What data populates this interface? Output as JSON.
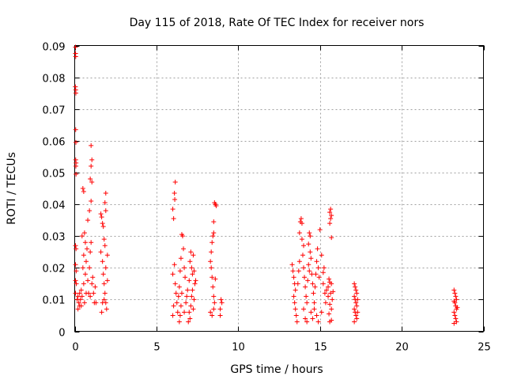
{
  "chart_data": {
    "type": "scatter",
    "title": "Day 115 of 2018, Rate Of TEC Index for receiver nors",
    "xlabel": "GPS time / hours",
    "ylabel": "ROTI / TECUs",
    "xlim": [
      0,
      25
    ],
    "ylim": [
      0,
      0.09
    ],
    "x_ticks": [
      {
        "value": 0,
        "label": "0"
      },
      {
        "value": 5,
        "label": "5"
      },
      {
        "value": 10,
        "label": "10"
      },
      {
        "value": 15,
        "label": "15"
      },
      {
        "value": 20,
        "label": "20"
      },
      {
        "value": 25,
        "label": "25"
      }
    ],
    "y_ticks": [
      {
        "value": 0,
        "label": "0"
      },
      {
        "value": 0.01,
        "label": "0.01"
      },
      {
        "value": 0.02,
        "label": "0.02"
      },
      {
        "value": 0.03,
        "label": "0.03"
      },
      {
        "value": 0.04,
        "label": "0.04"
      },
      {
        "value": 0.05,
        "label": "0.05"
      },
      {
        "value": 0.06,
        "label": "0.06"
      },
      {
        "value": 0.07,
        "label": "0.07"
      },
      {
        "value": 0.08,
        "label": "0.08"
      },
      {
        "value": 0.09,
        "label": "0.09"
      }
    ],
    "grid": true,
    "marker": "plus",
    "color": "#ff0000",
    "series": [
      {
        "name": "ROTI",
        "points": [
          [
            0.05,
            0.0895
          ],
          [
            0.05,
            0.0875
          ],
          [
            0.06,
            0.0865
          ],
          [
            0.04,
            0.077
          ],
          [
            0.06,
            0.076
          ],
          [
            0.07,
            0.075
          ],
          [
            0.06,
            0.0635
          ],
          [
            0.07,
            0.0595
          ],
          [
            0.06,
            0.054
          ],
          [
            0.08,
            0.053
          ],
          [
            0.07,
            0.052
          ],
          [
            0.08,
            0.0495
          ],
          [
            0.05,
            0.027
          ],
          [
            0.08,
            0.026
          ],
          [
            0.05,
            0.021
          ],
          [
            0.09,
            0.019
          ],
          [
            0.05,
            0.016
          ],
          [
            0.1,
            0.015
          ],
          [
            0.05,
            0.012
          ],
          [
            0.15,
            0.01
          ],
          [
            0.2,
            0.011
          ],
          [
            0.25,
            0.009
          ],
          [
            0.3,
            0.012
          ],
          [
            0.2,
            0.007
          ],
          [
            0.3,
            0.008
          ],
          [
            0.35,
            0.01
          ],
          [
            0.4,
            0.013
          ],
          [
            0.45,
            0.011
          ],
          [
            0.4,
            0.008
          ],
          [
            0.5,
            0.02
          ],
          [
            0.55,
            0.024
          ],
          [
            0.45,
            0.03
          ],
          [
            0.6,
            0.031
          ],
          [
            0.65,
            0.028
          ],
          [
            0.55,
            0.015
          ],
          [
            0.65,
            0.018
          ],
          [
            0.7,
            0.022
          ],
          [
            0.75,
            0.026
          ],
          [
            0.6,
            0.009
          ],
          [
            0.7,
            0.012
          ],
          [
            0.8,
            0.016
          ],
          [
            0.9,
            0.02
          ],
          [
            0.95,
            0.025
          ],
          [
            1.0,
            0.028
          ],
          [
            0.85,
            0.012
          ],
          [
            0.95,
            0.011
          ],
          [
            1.05,
            0.015
          ],
          [
            0.8,
            0.035
          ],
          [
            0.9,
            0.038
          ],
          [
            1.0,
            0.041
          ],
          [
            1.0,
            0.0585
          ],
          [
            1.05,
            0.054
          ],
          [
            1.0,
            0.052
          ],
          [
            0.95,
            0.048
          ],
          [
            1.05,
            0.047
          ],
          [
            1.1,
            0.017
          ],
          [
            1.15,
            0.012
          ],
          [
            1.2,
            0.009
          ],
          [
            1.25,
            0.014
          ],
          [
            1.3,
            0.009
          ],
          [
            0.5,
            0.045
          ],
          [
            0.55,
            0.044
          ],
          [
            1.6,
            0.037
          ],
          [
            1.65,
            0.036
          ],
          [
            1.7,
            0.034
          ],
          [
            1.75,
            0.033
          ],
          [
            1.8,
            0.029
          ],
          [
            1.85,
            0.027
          ],
          [
            1.9,
            0.0435
          ],
          [
            1.85,
            0.0405
          ],
          [
            1.9,
            0.038
          ],
          [
            1.6,
            0.025
          ],
          [
            1.7,
            0.022
          ],
          [
            1.75,
            0.018
          ],
          [
            1.8,
            0.015
          ],
          [
            1.85,
            0.012
          ],
          [
            1.9,
            0.009
          ],
          [
            1.95,
            0.007
          ],
          [
            1.65,
            0.006
          ],
          [
            1.7,
            0.009
          ],
          [
            1.8,
            0.01
          ],
          [
            1.9,
            0.02
          ],
          [
            2.0,
            0.024
          ],
          [
            2.0,
            0.016
          ],
          [
            6.0,
            0.0385
          ],
          [
            6.05,
            0.0355
          ],
          [
            6.1,
            0.0435
          ],
          [
            6.12,
            0.0415
          ],
          [
            6.15,
            0.047
          ],
          [
            6.0,
            0.018
          ],
          [
            6.1,
            0.021
          ],
          [
            6.15,
            0.015
          ],
          [
            6.2,
            0.012
          ],
          [
            6.25,
            0.009
          ],
          [
            6.3,
            0.006
          ],
          [
            6.0,
            0.005
          ],
          [
            6.05,
            0.008
          ],
          [
            6.35,
            0.011
          ],
          [
            6.4,
            0.014
          ],
          [
            6.45,
            0.019
          ],
          [
            6.5,
            0.023
          ],
          [
            6.55,
            0.0305
          ],
          [
            6.6,
            0.03
          ],
          [
            6.65,
            0.026
          ],
          [
            6.7,
            0.02
          ],
          [
            6.75,
            0.017
          ],
          [
            6.45,
            0.005
          ],
          [
            6.5,
            0.008
          ],
          [
            6.55,
            0.012
          ],
          [
            6.7,
            0.006
          ],
          [
            6.8,
            0.009
          ],
          [
            6.4,
            0.003
          ],
          [
            6.85,
            0.011
          ],
          [
            6.9,
            0.013
          ],
          [
            7.0,
            0.016
          ],
          [
            7.05,
            0.022
          ],
          [
            7.1,
            0.025
          ],
          [
            7.15,
            0.02
          ],
          [
            7.2,
            0.018
          ],
          [
            7.25,
            0.024
          ],
          [
            7.3,
            0.019
          ],
          [
            7.0,
            0.006
          ],
          [
            7.05,
            0.004
          ],
          [
            7.1,
            0.008
          ],
          [
            7.15,
            0.011
          ],
          [
            7.2,
            0.013
          ],
          [
            7.25,
            0.007
          ],
          [
            7.3,
            0.01
          ],
          [
            6.95,
            0.003
          ],
          [
            7.35,
            0.015
          ],
          [
            7.4,
            0.016
          ],
          [
            8.3,
            0.022
          ],
          [
            8.35,
            0.025
          ],
          [
            8.4,
            0.028
          ],
          [
            8.45,
            0.03
          ],
          [
            8.5,
            0.031
          ],
          [
            8.35,
            0.02
          ],
          [
            8.4,
            0.017
          ],
          [
            8.45,
            0.014
          ],
          [
            8.5,
            0.011
          ],
          [
            8.55,
            0.009
          ],
          [
            8.6,
            0.0165
          ],
          [
            8.3,
            0.006
          ],
          [
            8.4,
            0.005
          ],
          [
            8.5,
            0.007
          ],
          [
            8.55,
            0.0405
          ],
          [
            8.6,
            0.04
          ],
          [
            8.65,
            0.0395
          ],
          [
            8.5,
            0.0345
          ],
          [
            8.9,
            0.007
          ],
          [
            8.95,
            0.01
          ],
          [
            9.0,
            0.009
          ],
          [
            8.9,
            0.005
          ],
          [
            13.3,
            0.021
          ],
          [
            13.35,
            0.019
          ],
          [
            13.4,
            0.017
          ],
          [
            13.45,
            0.015
          ],
          [
            13.5,
            0.013
          ],
          [
            13.4,
            0.011
          ],
          [
            13.45,
            0.009
          ],
          [
            13.5,
            0.007
          ],
          [
            13.55,
            0.005
          ],
          [
            13.6,
            0.003
          ],
          [
            13.65,
            0.015
          ],
          [
            13.7,
            0.019
          ],
          [
            13.75,
            0.022
          ],
          [
            13.8,
            0.0345
          ],
          [
            13.85,
            0.0355
          ],
          [
            13.9,
            0.034
          ],
          [
            13.75,
            0.031
          ],
          [
            13.9,
            0.029
          ],
          [
            14.0,
            0.027
          ],
          [
            13.95,
            0.024
          ],
          [
            14.0,
            0.02
          ],
          [
            14.05,
            0.017
          ],
          [
            14.1,
            0.014
          ],
          [
            14.15,
            0.011
          ],
          [
            14.2,
            0.009
          ],
          [
            14.0,
            0.007
          ],
          [
            14.1,
            0.004
          ],
          [
            14.2,
            0.003
          ],
          [
            14.25,
            0.016
          ],
          [
            14.3,
            0.021
          ],
          [
            14.35,
            0.019
          ],
          [
            14.4,
            0.025
          ],
          [
            14.45,
            0.023
          ],
          [
            14.3,
            0.0275
          ],
          [
            14.35,
            0.031
          ],
          [
            14.4,
            0.03
          ],
          [
            14.5,
            0.018
          ],
          [
            14.55,
            0.015
          ],
          [
            14.6,
            0.012
          ],
          [
            14.65,
            0.009
          ],
          [
            14.7,
            0.014
          ],
          [
            14.75,
            0.018
          ],
          [
            14.8,
            0.022
          ],
          [
            14.85,
            0.026
          ],
          [
            14.9,
            0.02
          ],
          [
            14.95,
            0.017
          ],
          [
            15.0,
            0.032
          ],
          [
            14.45,
            0.006
          ],
          [
            14.55,
            0.004
          ],
          [
            14.65,
            0.007
          ],
          [
            14.8,
            0.005
          ],
          [
            14.9,
            0.003
          ],
          [
            15.1,
            0.024
          ],
          [
            15.2,
            0.0185
          ],
          [
            15.3,
            0.012
          ],
          [
            15.35,
            0.009
          ],
          [
            15.4,
            0.013
          ],
          [
            15.2,
            0.015
          ],
          [
            15.1,
            0.006
          ],
          [
            15.25,
            0.02
          ],
          [
            15.5,
            0.014
          ],
          [
            15.55,
            0.0165
          ],
          [
            15.6,
            0.0155
          ],
          [
            15.5,
            0.011
          ],
          [
            15.6,
            0.0085
          ],
          [
            15.65,
            0.012
          ],
          [
            15.7,
            0.015
          ],
          [
            15.55,
            0.0055
          ],
          [
            15.6,
            0.003
          ],
          [
            15.7,
            0.0035
          ],
          [
            15.6,
            0.0375
          ],
          [
            15.65,
            0.0385
          ],
          [
            15.7,
            0.0365
          ],
          [
            15.65,
            0.0355
          ],
          [
            15.6,
            0.034
          ],
          [
            15.7,
            0.0295
          ],
          [
            15.7,
            0.007
          ],
          [
            15.75,
            0.01
          ],
          [
            15.8,
            0.0125
          ],
          [
            17.1,
            0.015
          ],
          [
            17.15,
            0.014
          ],
          [
            17.2,
            0.013
          ],
          [
            17.25,
            0.012
          ],
          [
            17.1,
            0.011
          ],
          [
            17.15,
            0.01
          ],
          [
            17.2,
            0.009
          ],
          [
            17.25,
            0.008
          ],
          [
            17.1,
            0.007
          ],
          [
            17.15,
            0.006
          ],
          [
            17.2,
            0.005
          ],
          [
            17.25,
            0.004
          ],
          [
            17.1,
            0.003
          ],
          [
            17.3,
            0.01
          ],
          [
            17.3,
            0.006
          ],
          [
            23.2,
            0.013
          ],
          [
            23.25,
            0.012
          ],
          [
            23.3,
            0.011
          ],
          [
            23.35,
            0.01
          ],
          [
            23.2,
            0.0095
          ],
          [
            23.25,
            0.009
          ],
          [
            23.3,
            0.008
          ],
          [
            23.35,
            0.007
          ],
          [
            23.2,
            0.006
          ],
          [
            23.25,
            0.005
          ],
          [
            23.3,
            0.004
          ],
          [
            23.35,
            0.003
          ],
          [
            23.2,
            0.0025
          ],
          [
            23.4,
            0.0075
          ]
        ]
      }
    ]
  }
}
